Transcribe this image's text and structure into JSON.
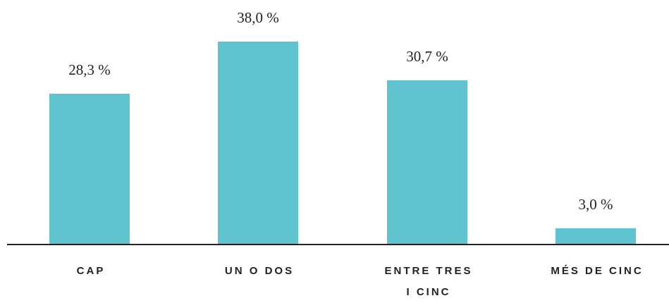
{
  "chart_data": {
    "type": "bar",
    "categories": [
      "CAP",
      "UN O DOS",
      "ENTRE TRES I CINC",
      "MÉS DE CINC"
    ],
    "values": [
      28.3,
      38.0,
      30.7,
      3.0
    ],
    "value_labels": [
      "28,3 %",
      "38,0 %",
      "30,7 %",
      "3,0 %"
    ],
    "color": "#5fc3d0"
  }
}
